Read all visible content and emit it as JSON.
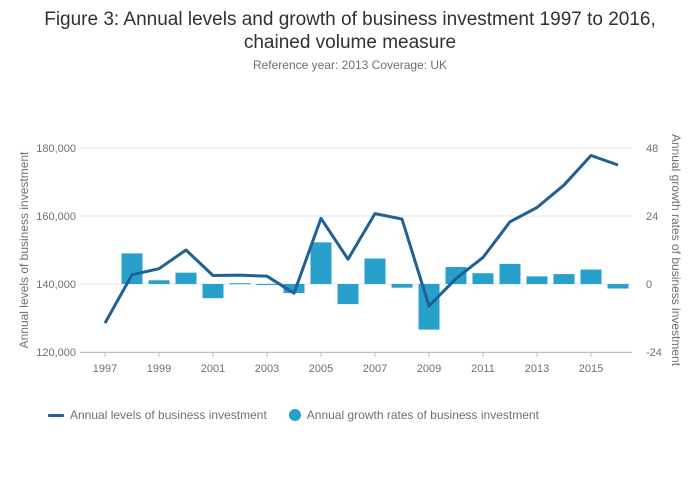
{
  "title_line1": "Figure 3: Annual levels and growth of business investment 1997 to 2016,",
  "title_line2": "chained volume measure",
  "subtitle": "Reference year: 2013 Coverage: UK",
  "colors": {
    "line": "#206095",
    "bar": "#27a0cc",
    "grid": "#e0e0e0"
  },
  "legend": {
    "line_label": "Annual levels of business investment",
    "bar_label": "Annual growth rates of business investment"
  },
  "chart_data": {
    "type": "bar+line",
    "title": "Figure 3: Annual levels and growth of business investment 1997 to 2016, chained volume measure",
    "subtitle": "Reference year: 2013 Coverage: UK",
    "ylabel_left": "Annual levels of business investment",
    "ylabel_right": "Annual growth rates of business investment",
    "x": [
      1997,
      1998,
      1999,
      2000,
      2001,
      2002,
      2003,
      2004,
      2005,
      2006,
      2007,
      2008,
      2009,
      2010,
      2011,
      2012,
      2013,
      2014,
      2015,
      2016
    ],
    "x_ticks": [
      "1997",
      "1999",
      "2001",
      "2003",
      "2005",
      "2007",
      "2009",
      "2011",
      "2013",
      "2015"
    ],
    "y_left_ticks": [
      "120,000",
      "140,000",
      "160,000",
      "180,000"
    ],
    "y_left_range": [
      120000,
      180000
    ],
    "y_right_ticks": [
      "-24",
      "0",
      "24",
      "48"
    ],
    "y_right_range": [
      -24,
      48
    ],
    "series": [
      {
        "name": "Annual levels of business investment",
        "type": "line",
        "axis": "left",
        "values": [
          128500,
          142700,
          144500,
          150000,
          142500,
          142600,
          142300,
          137300,
          159300,
          147300,
          160700,
          159100,
          133500,
          141600,
          147800,
          158300,
          162500,
          169100,
          177800,
          175000
        ]
      },
      {
        "name": "Annual growth rates of business investment",
        "type": "bar",
        "axis": "right",
        "values": [
          null,
          10.8,
          1.3,
          4.0,
          -5.0,
          0.3,
          -0.3,
          -3.2,
          14.7,
          -7.1,
          9.0,
          -1.3,
          -16.1,
          6.0,
          3.8,
          7.1,
          2.7,
          3.5,
          5.1,
          -1.6
        ]
      }
    ],
    "grid": true,
    "legend_position": "bottom-left"
  }
}
